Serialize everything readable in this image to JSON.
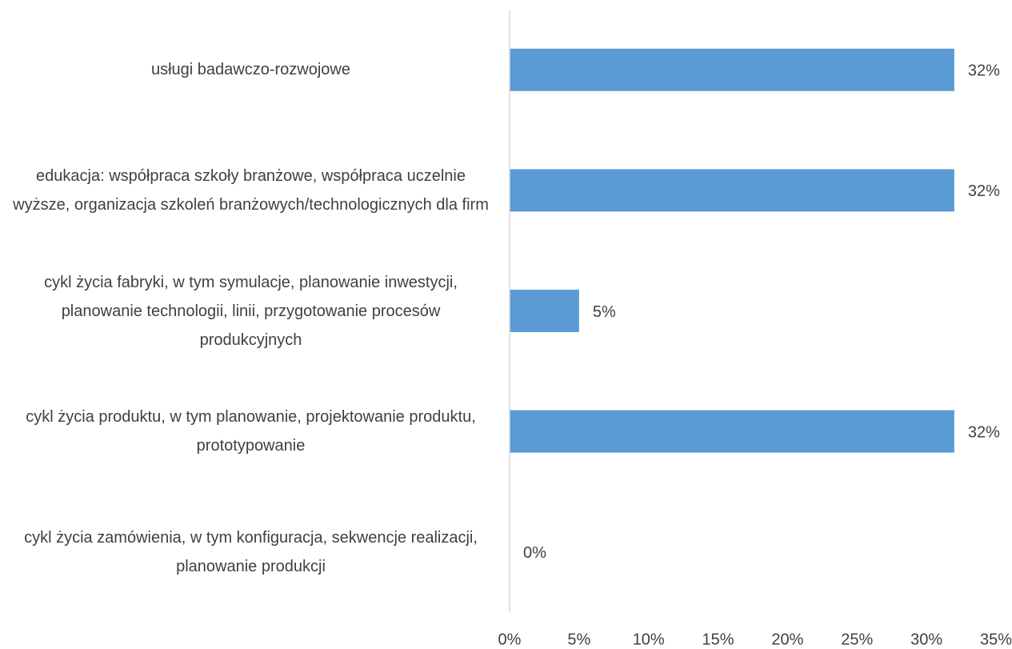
{
  "chart_data": {
    "type": "barh",
    "categories": [
      "usługi badawczo-rozwojowe",
      "edukacja: współpraca szkoły branżowe, współpraca uczelnie wyższe, organizacja szkoleń branżowych/technologicznych dla firm",
      "cykl życia fabryki, w tym symulacje, planowanie inwestycji, planowanie technologii, linii, przygotowanie procesów produkcyjnych",
      "cykl życia produktu, w tym planowanie, projektowanie produktu, prototypowanie",
      "cykl życia zamówienia, w tym konfiguracja, sekwencje realizacji, planowanie produkcji"
    ],
    "values": [
      32,
      32,
      5,
      32,
      0
    ],
    "value_labels": [
      "32%",
      "32%",
      "5%",
      "32%",
      "0%"
    ],
    "color": "#5b9bd5",
    "xlim": [
      0,
      35
    ],
    "xticks": [
      {
        "value": 0,
        "label": "0%"
      },
      {
        "value": 5,
        "label": "5%"
      },
      {
        "value": 10,
        "label": "10%"
      },
      {
        "value": 15,
        "label": "15%"
      },
      {
        "value": 20,
        "label": "20%"
      },
      {
        "value": 25,
        "label": "25%"
      },
      {
        "value": 30,
        "label": "30%"
      },
      {
        "value": 35,
        "label": "35%"
      }
    ],
    "grid": false
  }
}
